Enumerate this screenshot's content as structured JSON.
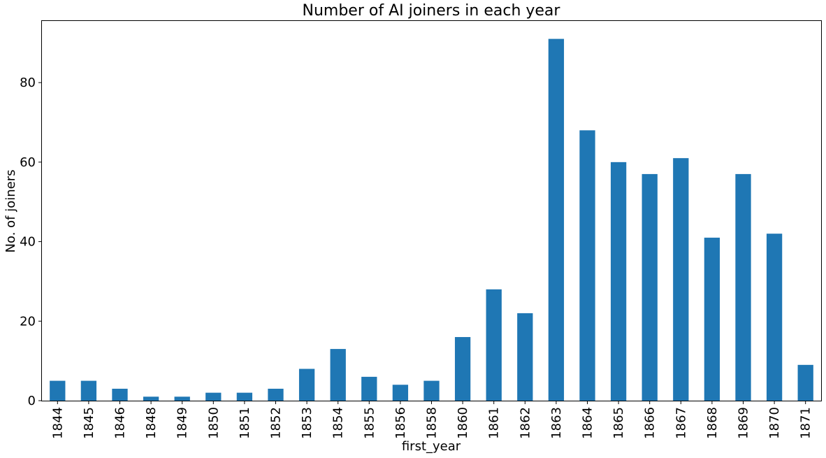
{
  "chart_data": {
    "type": "bar",
    "title": "Number of AI joiners in each year",
    "xlabel": "first_year",
    "ylabel": "No. of joiners",
    "categories": [
      "1844",
      "1845",
      "1846",
      "1848",
      "1849",
      "1850",
      "1851",
      "1852",
      "1853",
      "1854",
      "1855",
      "1856",
      "1858",
      "1860",
      "1861",
      "1862",
      "1863",
      "1864",
      "1865",
      "1866",
      "1867",
      "1868",
      "1869",
      "1870",
      "1871"
    ],
    "values": [
      5,
      5,
      3,
      1,
      1,
      2,
      2,
      3,
      8,
      13,
      6,
      4,
      5,
      16,
      28,
      22,
      91,
      68,
      60,
      57,
      61,
      41,
      57,
      42,
      9
    ],
    "ylim": [
      0,
      95.5
    ],
    "yticks": [
      0,
      20,
      40,
      60,
      80
    ],
    "bar_color": "#1f77b4",
    "grid": false,
    "legend": "none"
  }
}
